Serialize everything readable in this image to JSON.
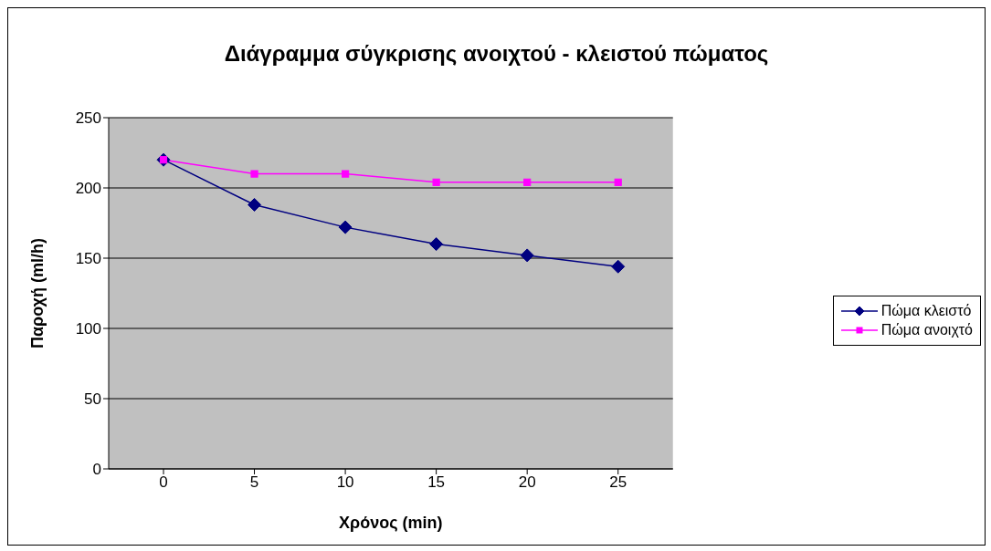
{
  "chart_data": {
    "type": "line",
    "title": "Διάγραμμα σύγκρισης ανοιχτού - κλειστού πώματος",
    "xlabel": "Χρόνος (min)",
    "ylabel": "Παροχή (ml/h)",
    "categories": [
      "0",
      "5",
      "10",
      "15",
      "20",
      "25"
    ],
    "series": [
      {
        "name": "Πώμα κλειστό",
        "color": "#000080",
        "marker": "diamond",
        "values": [
          220,
          188,
          172,
          160,
          152,
          144
        ]
      },
      {
        "name": "Πώμα ανοιχτό",
        "color": "#ff00ff",
        "marker": "square",
        "values": [
          220,
          210,
          210,
          204,
          204,
          204
        ]
      }
    ],
    "ylim": [
      0,
      250
    ],
    "yticks": [
      0,
      50,
      100,
      150,
      200,
      250
    ],
    "grid": "y",
    "legend": "right",
    "line_style": "solid"
  }
}
